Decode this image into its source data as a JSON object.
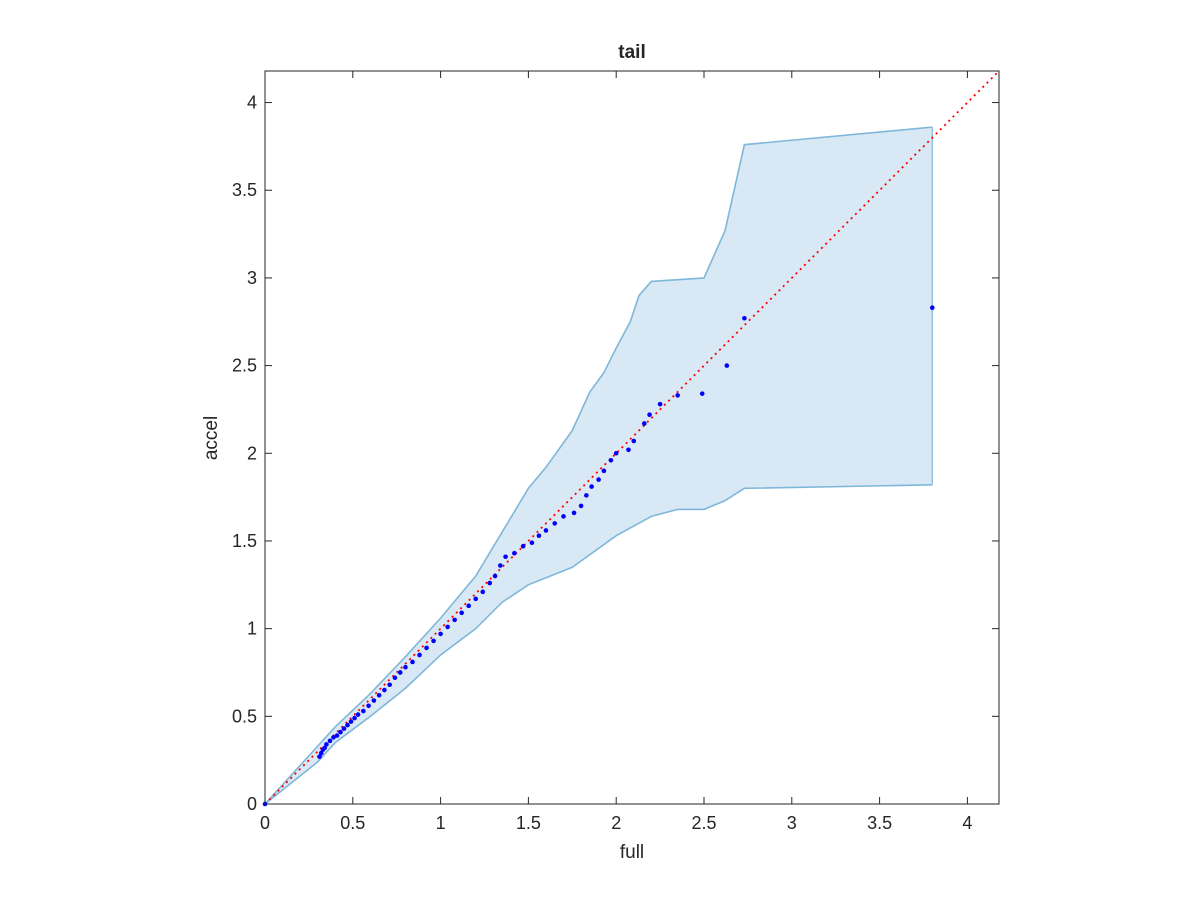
{
  "chart_data": {
    "type": "scatter",
    "title": "tail",
    "xlabel": "full",
    "ylabel": "accel",
    "xlim": [
      0,
      4.18
    ],
    "ylim": [
      0,
      4.18
    ],
    "xticks": [
      0,
      0.5,
      1,
      1.5,
      2,
      2.5,
      3,
      3.5,
      4
    ],
    "yticks": [
      0,
      0.5,
      1,
      1.5,
      2,
      2.5,
      3,
      3.5,
      4
    ],
    "xtick_labels": [
      "0",
      "0.5",
      "1",
      "1.5",
      "2",
      "2.5",
      "3",
      "3.5",
      "4"
    ],
    "ytick_labels": [
      "0",
      "0.5",
      "1",
      "1.5",
      "2",
      "2.5",
      "3",
      "3.5",
      "4"
    ],
    "grid": false,
    "colors": {
      "points": "#0000ff",
      "reference_line": "#ff0000",
      "band_fill": "#d8e8f4",
      "band_edge": "#7fb7da",
      "axis": "#262626"
    },
    "reference_line": {
      "style": "dotted",
      "from": [
        0,
        0
      ],
      "to": [
        4.18,
        4.18
      ]
    },
    "band_upper": [
      [
        0,
        0
      ],
      [
        0.3,
        0.33
      ],
      [
        0.4,
        0.44
      ],
      [
        0.6,
        0.63
      ],
      [
        0.8,
        0.84
      ],
      [
        1.0,
        1.06
      ],
      [
        1.2,
        1.3
      ],
      [
        1.35,
        1.55
      ],
      [
        1.5,
        1.8
      ],
      [
        1.6,
        1.92
      ],
      [
        1.75,
        2.13
      ],
      [
        1.85,
        2.35
      ],
      [
        1.93,
        2.46
      ],
      [
        2.0,
        2.6
      ],
      [
        2.08,
        2.75
      ],
      [
        2.13,
        2.9
      ],
      [
        2.2,
        2.98
      ],
      [
        2.5,
        3.0
      ],
      [
        2.62,
        3.27
      ],
      [
        2.73,
        3.76
      ],
      [
        3.8,
        3.86
      ]
    ],
    "band_lower": [
      [
        0,
        0
      ],
      [
        0.3,
        0.24
      ],
      [
        0.4,
        0.35
      ],
      [
        0.6,
        0.5
      ],
      [
        0.8,
        0.66
      ],
      [
        1.0,
        0.85
      ],
      [
        1.2,
        1.0
      ],
      [
        1.35,
        1.15
      ],
      [
        1.5,
        1.25
      ],
      [
        1.75,
        1.35
      ],
      [
        2.0,
        1.53
      ],
      [
        2.2,
        1.64
      ],
      [
        2.35,
        1.68
      ],
      [
        2.5,
        1.68
      ],
      [
        2.62,
        1.73
      ],
      [
        2.73,
        1.8
      ],
      [
        3.8,
        1.82
      ]
    ],
    "points": [
      [
        0,
        0
      ],
      [
        0.31,
        0.27
      ],
      [
        0.32,
        0.29
      ],
      [
        0.33,
        0.31
      ],
      [
        0.34,
        0.32
      ],
      [
        0.35,
        0.34
      ],
      [
        0.37,
        0.36
      ],
      [
        0.39,
        0.38
      ],
      [
        0.41,
        0.39
      ],
      [
        0.43,
        0.41
      ],
      [
        0.45,
        0.43
      ],
      [
        0.47,
        0.45
      ],
      [
        0.49,
        0.47
      ],
      [
        0.51,
        0.49
      ],
      [
        0.53,
        0.51
      ],
      [
        0.56,
        0.53
      ],
      [
        0.59,
        0.56
      ],
      [
        0.62,
        0.59
      ],
      [
        0.65,
        0.62
      ],
      [
        0.68,
        0.65
      ],
      [
        0.71,
        0.68
      ],
      [
        0.74,
        0.72
      ],
      [
        0.77,
        0.75
      ],
      [
        0.8,
        0.78
      ],
      [
        0.84,
        0.81
      ],
      [
        0.88,
        0.85
      ],
      [
        0.92,
        0.89
      ],
      [
        0.96,
        0.93
      ],
      [
        1.0,
        0.97
      ],
      [
        1.04,
        1.01
      ],
      [
        1.08,
        1.05
      ],
      [
        1.12,
        1.09
      ],
      [
        1.16,
        1.13
      ],
      [
        1.2,
        1.17
      ],
      [
        1.24,
        1.21
      ],
      [
        1.28,
        1.26
      ],
      [
        1.31,
        1.3
      ],
      [
        1.34,
        1.36
      ],
      [
        1.37,
        1.41
      ],
      [
        1.42,
        1.43
      ],
      [
        1.47,
        1.47
      ],
      [
        1.52,
        1.49
      ],
      [
        1.56,
        1.53
      ],
      [
        1.6,
        1.56
      ],
      [
        1.65,
        1.6
      ],
      [
        1.7,
        1.64
      ],
      [
        1.76,
        1.66
      ],
      [
        1.8,
        1.7
      ],
      [
        1.83,
        1.76
      ],
      [
        1.86,
        1.81
      ],
      [
        1.9,
        1.85
      ],
      [
        1.93,
        1.9
      ],
      [
        1.97,
        1.96
      ],
      [
        2.0,
        2.0
      ],
      [
        2.07,
        2.02
      ],
      [
        2.1,
        2.07
      ],
      [
        2.16,
        2.17
      ],
      [
        2.19,
        2.22
      ],
      [
        2.25,
        2.28
      ],
      [
        2.35,
        2.33
      ],
      [
        2.49,
        2.34
      ],
      [
        2.63,
        2.5
      ],
      [
        2.73,
        2.77
      ],
      [
        3.8,
        2.83
      ]
    ]
  }
}
